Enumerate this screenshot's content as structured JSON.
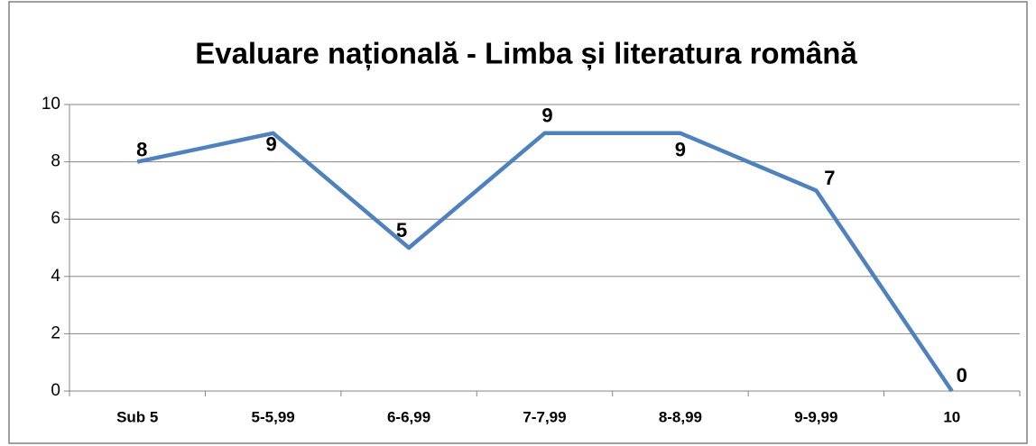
{
  "chart_data": {
    "type": "line",
    "title": "Evaluare națională - Limba și literatura română",
    "categories": [
      "Sub 5",
      "5-5,99",
      "6-6,99",
      "7-7,99",
      "8-8,99",
      "9-9,99",
      "10"
    ],
    "values": [
      8,
      9,
      5,
      9,
      9,
      7,
      0
    ],
    "color": "#4f81bd",
    "ylim": [
      0,
      10
    ],
    "yticks": [
      0,
      2,
      4,
      6,
      8,
      10
    ],
    "grid": true
  }
}
